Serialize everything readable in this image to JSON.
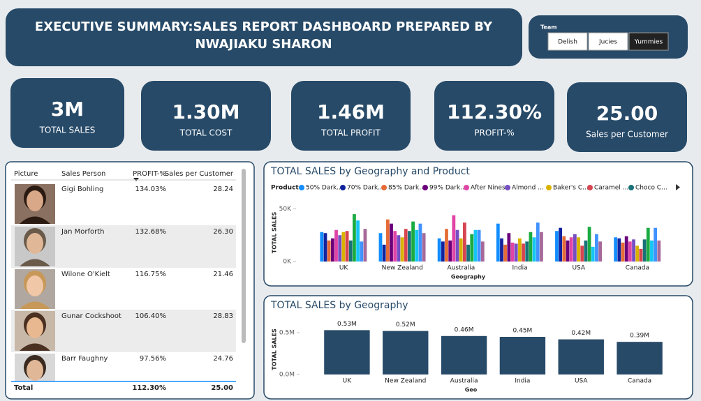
{
  "header": {
    "title": "EXECUTIVE SUMMARY:SALES REPORT DASHBOARD PREPARED BY NWAJIAKU SHARON"
  },
  "slicer": {
    "title": "Team",
    "options": [
      "Delish",
      "Jucies",
      "Yummies"
    ]
  },
  "kpis": [
    {
      "value": "3M",
      "label": "TOTAL SALES"
    },
    {
      "value": "1.30M",
      "label": "TOTAL COST"
    },
    {
      "value": "1.46M",
      "label": "TOTAL PROFIT"
    },
    {
      "value": "112.30%",
      "label": "PROFIT-%"
    },
    {
      "value": "25.00",
      "label": "Sales per Customer"
    }
  ],
  "table": {
    "columns": [
      "Picture",
      "Sales Person",
      "PROFIT-%",
      "Sales per Customer"
    ],
    "rows": [
      [
        "Gigi Bohling",
        "134.03%",
        "28.24"
      ],
      [
        "Jan Morforth",
        "132.68%",
        "26.30"
      ],
      [
        "Wilone O'Kielt",
        "116.75%",
        "21.46"
      ],
      [
        "Gunar Cockshoot",
        "106.40%",
        "28.83"
      ],
      [
        "Barr Faughny",
        "97.56%",
        "24.76"
      ]
    ],
    "total": [
      "Total",
      "112.30%",
      "25.00"
    ]
  },
  "chart_data": [
    {
      "type": "grouped_bar",
      "title": "TOTAL SALES by Geography and Product",
      "legend_title": "Product",
      "xlabel": "Geography",
      "ylabel": "TOTAL SALES",
      "categories": [
        "UK",
        "New Zealand",
        "Australia",
        "India",
        "USA",
        "Canada"
      ],
      "ylim": [
        0,
        55000
      ],
      "yticks": [
        {
          "value": 0,
          "label": "0K"
        },
        {
          "value": 50000,
          "label": "50K"
        }
      ],
      "series": [
        {
          "name": "50% Dark...",
          "color": "#118DFF",
          "values": [
            28000,
            27000,
            22000,
            36000,
            29000,
            23000
          ]
        },
        {
          "name": "70% Dark...",
          "color": "#12239E",
          "values": [
            27000,
            16000,
            19000,
            22000,
            32000,
            22000
          ]
        },
        {
          "name": "85% Dark...",
          "color": "#E66C37",
          "values": [
            20000,
            40000,
            31000,
            16000,
            24000,
            18000
          ]
        },
        {
          "name": "99% Dark...",
          "color": "#6B007B",
          "values": [
            22000,
            36000,
            20000,
            27000,
            20000,
            24000
          ]
        },
        {
          "name": "After Nines",
          "color": "#E044A7",
          "values": [
            30000,
            29000,
            44000,
            18000,
            23000,
            19000
          ]
        },
        {
          "name": "Almond ...",
          "color": "#744EC2",
          "values": [
            25000,
            25000,
            30000,
            17000,
            26000,
            21000
          ]
        },
        {
          "name": "Baker's C...",
          "color": "#D9B300",
          "values": [
            28000,
            23000,
            22000,
            22000,
            23000,
            15000
          ]
        },
        {
          "name": "Caramel ...",
          "color": "#D64550",
          "values": [
            29000,
            31000,
            37000,
            17000,
            15000,
            12000
          ]
        },
        {
          "name": "Choco C...",
          "color": "#197278",
          "values": [
            20000,
            29000,
            16000,
            19000,
            20000,
            21000
          ]
        },
        {
          "color": "#1AAB40",
          "values": [
            45000,
            38000,
            26000,
            28000,
            33000,
            32000
          ]
        },
        {
          "color": "#15C6F4",
          "values": [
            39000,
            30000,
            30000,
            23000,
            14000,
            20000
          ]
        },
        {
          "color": "#4092FF",
          "values": [
            19000,
            36000,
            30000,
            37000,
            26000,
            32000
          ]
        },
        {
          "color": "#A66999",
          "values": [
            31000,
            27000,
            19000,
            28000,
            19000,
            20000
          ]
        }
      ]
    },
    {
      "type": "bar",
      "title": "TOTAL SALES by Geography",
      "xlabel": "Geo",
      "ylabel": "TOTAL SALES",
      "categories": [
        "UK",
        "New Zealand",
        "Australia",
        "India",
        "USA",
        "Canada"
      ],
      "values": [
        530000,
        520000,
        460000,
        450000,
        420000,
        390000
      ],
      "value_labels": [
        "0.53M",
        "0.52M",
        "0.46M",
        "0.45M",
        "0.42M",
        "0.39M"
      ],
      "color": "#274a68",
      "ylim": [
        0,
        600000
      ],
      "yticks": [
        {
          "value": 0,
          "label": "0.0M"
        },
        {
          "value": 500000,
          "label": "0.5M"
        }
      ]
    }
  ]
}
